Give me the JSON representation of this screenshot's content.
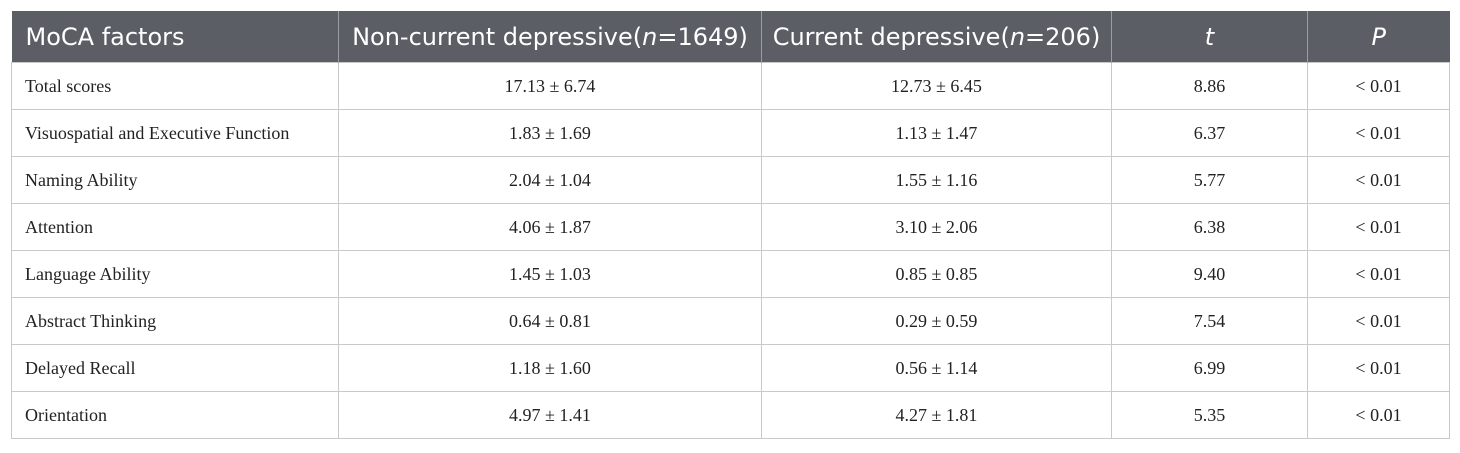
{
  "header": {
    "col1": "MoCA factors",
    "col2_prefix": "Non-current depressive(",
    "col2_n": "n",
    "col2_suffix": "=1649)",
    "col3_prefix": "Current depressive(",
    "col3_n": "n",
    "col3_suffix": "=206)",
    "col4": "t",
    "col5": "P"
  },
  "rows": [
    {
      "factor": "Total scores",
      "noncurrent": "17.13 ± 6.74",
      "current": "12.73 ± 6.45",
      "t": "8.86",
      "p": "< 0.01"
    },
    {
      "factor": "Visuospatial and Executive Function",
      "noncurrent": "1.83 ± 1.69",
      "current": "1.13 ± 1.47",
      "t": "6.37",
      "p": "< 0.01"
    },
    {
      "factor": "Naming Ability",
      "noncurrent": "2.04 ± 1.04",
      "current": "1.55 ± 1.16",
      "t": "5.77",
      "p": "< 0.01"
    },
    {
      "factor": "Attention",
      "noncurrent": "4.06 ± 1.87",
      "current": "3.10 ± 2.06",
      "t": "6.38",
      "p": "< 0.01"
    },
    {
      "factor": "Language Ability",
      "noncurrent": "1.45 ± 1.03",
      "current": "0.85 ± 0.85",
      "t": "9.40",
      "p": "< 0.01"
    },
    {
      "factor": "Abstract Thinking",
      "noncurrent": "0.64 ± 0.81",
      "current": "0.29 ± 0.59",
      "t": "7.54",
      "p": "< 0.01"
    },
    {
      "factor": "Delayed Recall",
      "noncurrent": "1.18 ± 1.60",
      "current": "0.56 ± 1.14",
      "t": "6.99",
      "p": "< 0.01"
    },
    {
      "factor": "Orientation",
      "noncurrent": "4.97 ± 1.41",
      "current": "4.27 ± 1.81",
      "t": "5.35",
      "p": "< 0.01"
    }
  ]
}
